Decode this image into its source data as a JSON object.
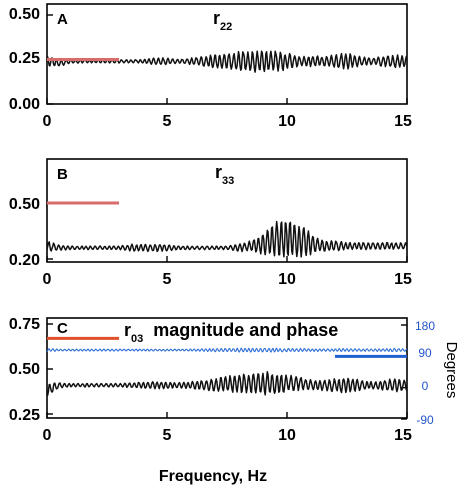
{
  "colors": {
    "trace": "#111111",
    "reference_line": "#d96b6b",
    "reference_line_c": "#e0502a",
    "phase_trace": "#2f6fd6",
    "phase_reference": "#1f5fd0",
    "right_axis_text": "#2255cc"
  },
  "xlabel": "Frequency, Hz",
  "chart_data": [
    {
      "type": "line",
      "panel": "A",
      "title": "r",
      "title_subscript": "22",
      "xlabel": "",
      "ylabel": "",
      "xlim": [
        0,
        15
      ],
      "ylim": [
        0,
        0.5
      ],
      "xticks": [
        0,
        5,
        10,
        15
      ],
      "xtick_labels": [
        "0",
        "5",
        "10",
        "15"
      ],
      "yticks": [
        0,
        0.25,
        0.5
      ],
      "ytick_labels": [
        "0.00",
        "0.25",
        "0.50"
      ],
      "reference_line": {
        "y": 0.25,
        "x": [
          0,
          3
        ]
      },
      "series": [
        {
          "x": [
            0.0,
            0.5,
            1.0,
            1.5,
            2.0,
            2.5,
            3.0,
            3.5,
            4.0,
            4.5,
            5.0,
            5.5,
            6.0,
            6.5,
            7.0,
            7.5,
            8.0,
            8.5,
            9.0,
            9.5,
            10.0,
            10.5,
            11.0,
            11.5,
            12.0,
            12.5,
            13.0,
            13.5,
            14.0,
            14.5,
            15.0
          ],
          "envelope_mean": [
            0.24,
            0.23,
            0.24,
            0.24,
            0.24,
            0.24,
            0.24,
            0.24,
            0.24,
            0.24,
            0.24,
            0.24,
            0.24,
            0.24,
            0.24,
            0.24,
            0.24,
            0.24,
            0.24,
            0.24,
            0.24,
            0.24,
            0.24,
            0.24,
            0.24,
            0.24,
            0.24,
            0.24,
            0.24,
            0.24,
            0.24
          ],
          "envelope_amplitude": [
            0.03,
            0.02,
            0.01,
            0.01,
            0.01,
            0.01,
            0.01,
            0.01,
            0.01,
            0.02,
            0.02,
            0.01,
            0.02,
            0.03,
            0.04,
            0.05,
            0.06,
            0.06,
            0.07,
            0.06,
            0.05,
            0.03,
            0.03,
            0.03,
            0.04,
            0.05,
            0.03,
            0.02,
            0.03,
            0.04,
            0.03
          ]
        }
      ]
    },
    {
      "type": "line",
      "panel": "B",
      "title": "r",
      "title_subscript": "33",
      "xlabel": "",
      "ylabel": "",
      "xlim": [
        0,
        15
      ],
      "ylim": [
        0.2,
        0.65
      ],
      "xticks": [
        0,
        5,
        10,
        15
      ],
      "xtick_labels": [
        "0",
        "5",
        "10",
        "15"
      ],
      "yticks": [
        0.2,
        0.5
      ],
      "ytick_labels": [
        "0.20",
        "0.50"
      ],
      "reference_line": {
        "y": 0.5,
        "x": [
          0,
          3
        ]
      },
      "series": [
        {
          "x": [
            0.0,
            0.5,
            1.0,
            1.5,
            2.0,
            2.5,
            3.0,
            3.5,
            4.0,
            4.5,
            5.0,
            5.5,
            6.0,
            6.5,
            7.0,
            7.5,
            8.0,
            8.5,
            9.0,
            9.5,
            10.0,
            10.5,
            11.0,
            11.5,
            12.0,
            12.5,
            13.0,
            13.5,
            14.0,
            14.5,
            15.0
          ],
          "envelope_mean": [
            0.27,
            0.26,
            0.26,
            0.26,
            0.26,
            0.26,
            0.26,
            0.26,
            0.26,
            0.26,
            0.26,
            0.26,
            0.26,
            0.26,
            0.26,
            0.26,
            0.26,
            0.27,
            0.28,
            0.3,
            0.31,
            0.3,
            0.28,
            0.27,
            0.27,
            0.27,
            0.27,
            0.27,
            0.27,
            0.27,
            0.27
          ],
          "envelope_amplitude": [
            0.03,
            0.015,
            0.01,
            0.01,
            0.01,
            0.01,
            0.01,
            0.02,
            0.02,
            0.02,
            0.02,
            0.01,
            0.01,
            0.01,
            0.01,
            0.01,
            0.02,
            0.03,
            0.06,
            0.1,
            0.12,
            0.1,
            0.06,
            0.03,
            0.03,
            0.02,
            0.02,
            0.02,
            0.02,
            0.02,
            0.02
          ]
        }
      ]
    },
    {
      "type": "line",
      "panel": "C",
      "title": "r",
      "title_subscript": "03",
      "title_suffix": "magnitude and phase",
      "xlabel": "",
      "ylabel": "",
      "ylabel_right": "Degrees",
      "xlim": [
        0,
        15
      ],
      "ylim": [
        0.25,
        0.75
      ],
      "ylim_right": [
        -90,
        180
      ],
      "xticks": [
        0,
        5,
        10,
        15
      ],
      "xtick_labels": [
        "0",
        "5",
        "10",
        "15"
      ],
      "yticks": [
        0.25,
        0.5,
        0.75
      ],
      "ytick_labels": [
        "0.25",
        "0.50",
        "0.75"
      ],
      "yticks_right": [
        -90,
        0,
        90,
        180
      ],
      "ytick_labels_right": [
        "-90",
        "0",
        "90",
        "180"
      ],
      "reference_line": {
        "y": 0.67,
        "x": [
          0,
          3
        ]
      },
      "reference_line_right": {
        "y": 90,
        "x": [
          12,
          15
        ]
      },
      "series": [
        {
          "axis": "left",
          "x": [
            0.0,
            0.5,
            1.0,
            1.5,
            2.0,
            2.5,
            3.0,
            3.5,
            4.0,
            4.5,
            5.0,
            5.5,
            6.0,
            6.5,
            7.0,
            7.5,
            8.0,
            8.5,
            9.0,
            9.5,
            10.0,
            10.5,
            11.0,
            11.5,
            12.0,
            12.5,
            13.0,
            13.5,
            14.0,
            14.5,
            15.0
          ],
          "envelope_mean": [
            0.38,
            0.41,
            0.41,
            0.41,
            0.41,
            0.41,
            0.41,
            0.41,
            0.41,
            0.41,
            0.41,
            0.41,
            0.41,
            0.41,
            0.41,
            0.42,
            0.42,
            0.42,
            0.42,
            0.42,
            0.42,
            0.42,
            0.41,
            0.41,
            0.41,
            0.41,
            0.41,
            0.41,
            0.41,
            0.41,
            0.41
          ],
          "envelope_amplitude": [
            0.04,
            0.015,
            0.01,
            0.01,
            0.01,
            0.01,
            0.01,
            0.015,
            0.02,
            0.02,
            0.02,
            0.015,
            0.02,
            0.03,
            0.04,
            0.05,
            0.06,
            0.06,
            0.07,
            0.06,
            0.05,
            0.04,
            0.03,
            0.03,
            0.04,
            0.05,
            0.03,
            0.02,
            0.03,
            0.04,
            0.03
          ]
        },
        {
          "axis": "right",
          "x": [
            0.0,
            0.5,
            1.0,
            1.5,
            2.0,
            2.5,
            3.0,
            3.5,
            4.0,
            4.5,
            5.0,
            5.5,
            6.0,
            6.5,
            7.0,
            7.5,
            8.0,
            8.5,
            9.0,
            9.5,
            10.0,
            10.5,
            11.0,
            11.5,
            12.0,
            12.5,
            13.0,
            13.5,
            14.0,
            14.5,
            15.0
          ],
          "envelope_mean": [
            108,
            108,
            108,
            108,
            108,
            108,
            108,
            108,
            108,
            108,
            108,
            108,
            108,
            108,
            108,
            108,
            108,
            108,
            108,
            108,
            108,
            108,
            108,
            108,
            108,
            108,
            108,
            108,
            108,
            108,
            108
          ],
          "envelope_amplitude": [
            5,
            3,
            3,
            3,
            3,
            3,
            3,
            3,
            3,
            3,
            3,
            3,
            3,
            4,
            5,
            5,
            6,
            6,
            6,
            6,
            5,
            5,
            4,
            4,
            4,
            5,
            4,
            4,
            4,
            5,
            4
          ]
        }
      ]
    }
  ]
}
